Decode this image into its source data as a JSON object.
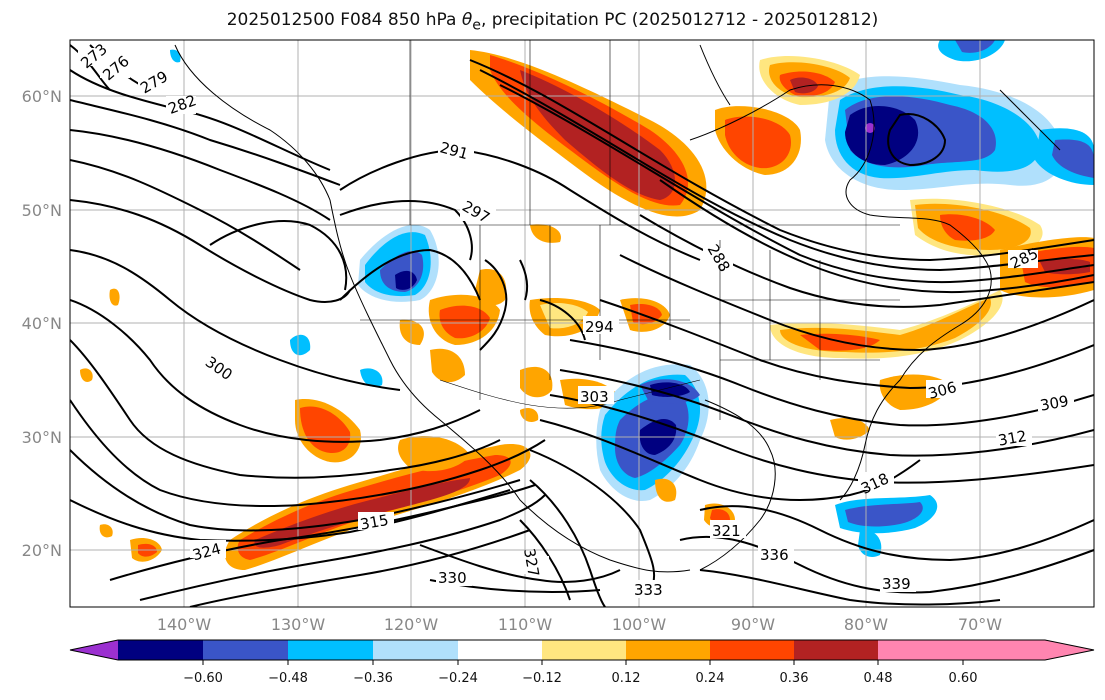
{
  "title_prefix": "2025012500 F084 850 hPa ",
  "title_symbol": "θ",
  "title_sub": "e",
  "title_suffix": ", precipitation PC (2025012712 - 2025012812)",
  "map": {
    "lon_range": [
      -150,
      -60
    ],
    "lat_range": [
      15,
      65
    ],
    "lat_ticks": [
      "60°N",
      "50°N",
      "40°N",
      "30°N",
      "20°N"
    ],
    "lon_ticks": [
      "140°W",
      "130°W",
      "120°W",
      "110°W",
      "100°W",
      "90°W",
      "80°W",
      "70°W"
    ],
    "grid": true
  },
  "contour_labels": [
    "273",
    "276",
    "279",
    "282",
    "285",
    "288",
    "291",
    "294",
    "297",
    "300",
    "303",
    "306",
    "309",
    "312",
    "315",
    "318",
    "321",
    "324",
    "327",
    "330",
    "333",
    "336",
    "339"
  ],
  "colorbar": {
    "ticks": [
      "−0.60",
      "−0.48",
      "−0.36",
      "−0.24",
      "−0.12",
      "0.12",
      "0.24",
      "0.36",
      "0.48",
      "0.60"
    ],
    "colors": [
      "#9b30d0",
      "#000080",
      "#3a55c8",
      "#00bfff",
      "#b0e0fc",
      "#ffffff",
      "#ffe680",
      "#ffa500",
      "#ff4500",
      "#b22222",
      "#ff85b0"
    ]
  }
}
